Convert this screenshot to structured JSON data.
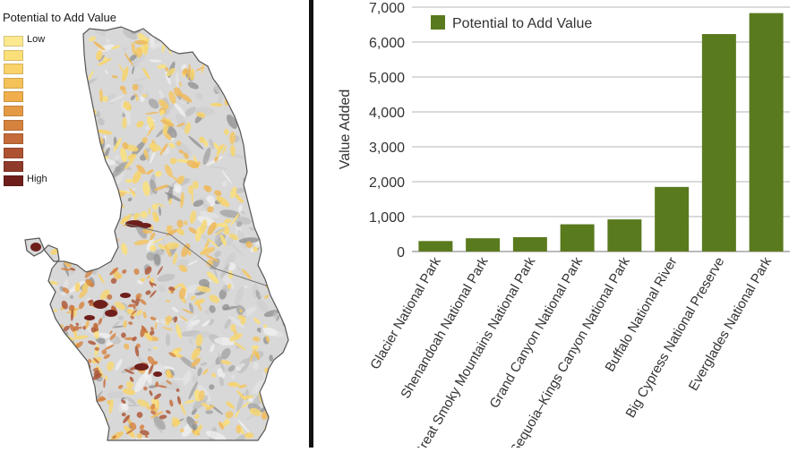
{
  "map": {
    "legend_title": "Potential to Add Value",
    "legend_low": "Low",
    "legend_high": "High",
    "legend_colors": [
      "#fbe88f",
      "#fbe07a",
      "#f9d36a",
      "#f5c25a",
      "#f0ae4c",
      "#e49a45",
      "#d6823f",
      "#c46b39",
      "#ad5332",
      "#8f3a2a",
      "#6e1f1c"
    ]
  },
  "chart_data": {
    "type": "bar",
    "categories": [
      "Glacier National Park",
      "Shenandoah National Park",
      "Great Smoky Mountains National Park",
      "Grand Canyon National Park",
      "Sequoia–Kings Canyon National Park",
      "Buffalo National River",
      "Big Cypress National Preserve",
      "Everglades National Park"
    ],
    "values": [
      300,
      380,
      410,
      780,
      920,
      1850,
      6230,
      6830
    ],
    "series": [
      {
        "name": "Potential to Add Value",
        "values": [
          300,
          380,
          410,
          780,
          920,
          1850,
          6230,
          6830
        ]
      }
    ],
    "title": "",
    "xlabel": "",
    "ylabel": "Value Added",
    "ylim": [
      0,
      7000
    ],
    "yticks": [
      "0",
      "1,000",
      "2,000",
      "3,000",
      "4,000",
      "5,000",
      "6,000",
      "7,000"
    ],
    "bar_color": "#5a7a1e",
    "grid": "horizontal",
    "legend_position": "top-left"
  }
}
